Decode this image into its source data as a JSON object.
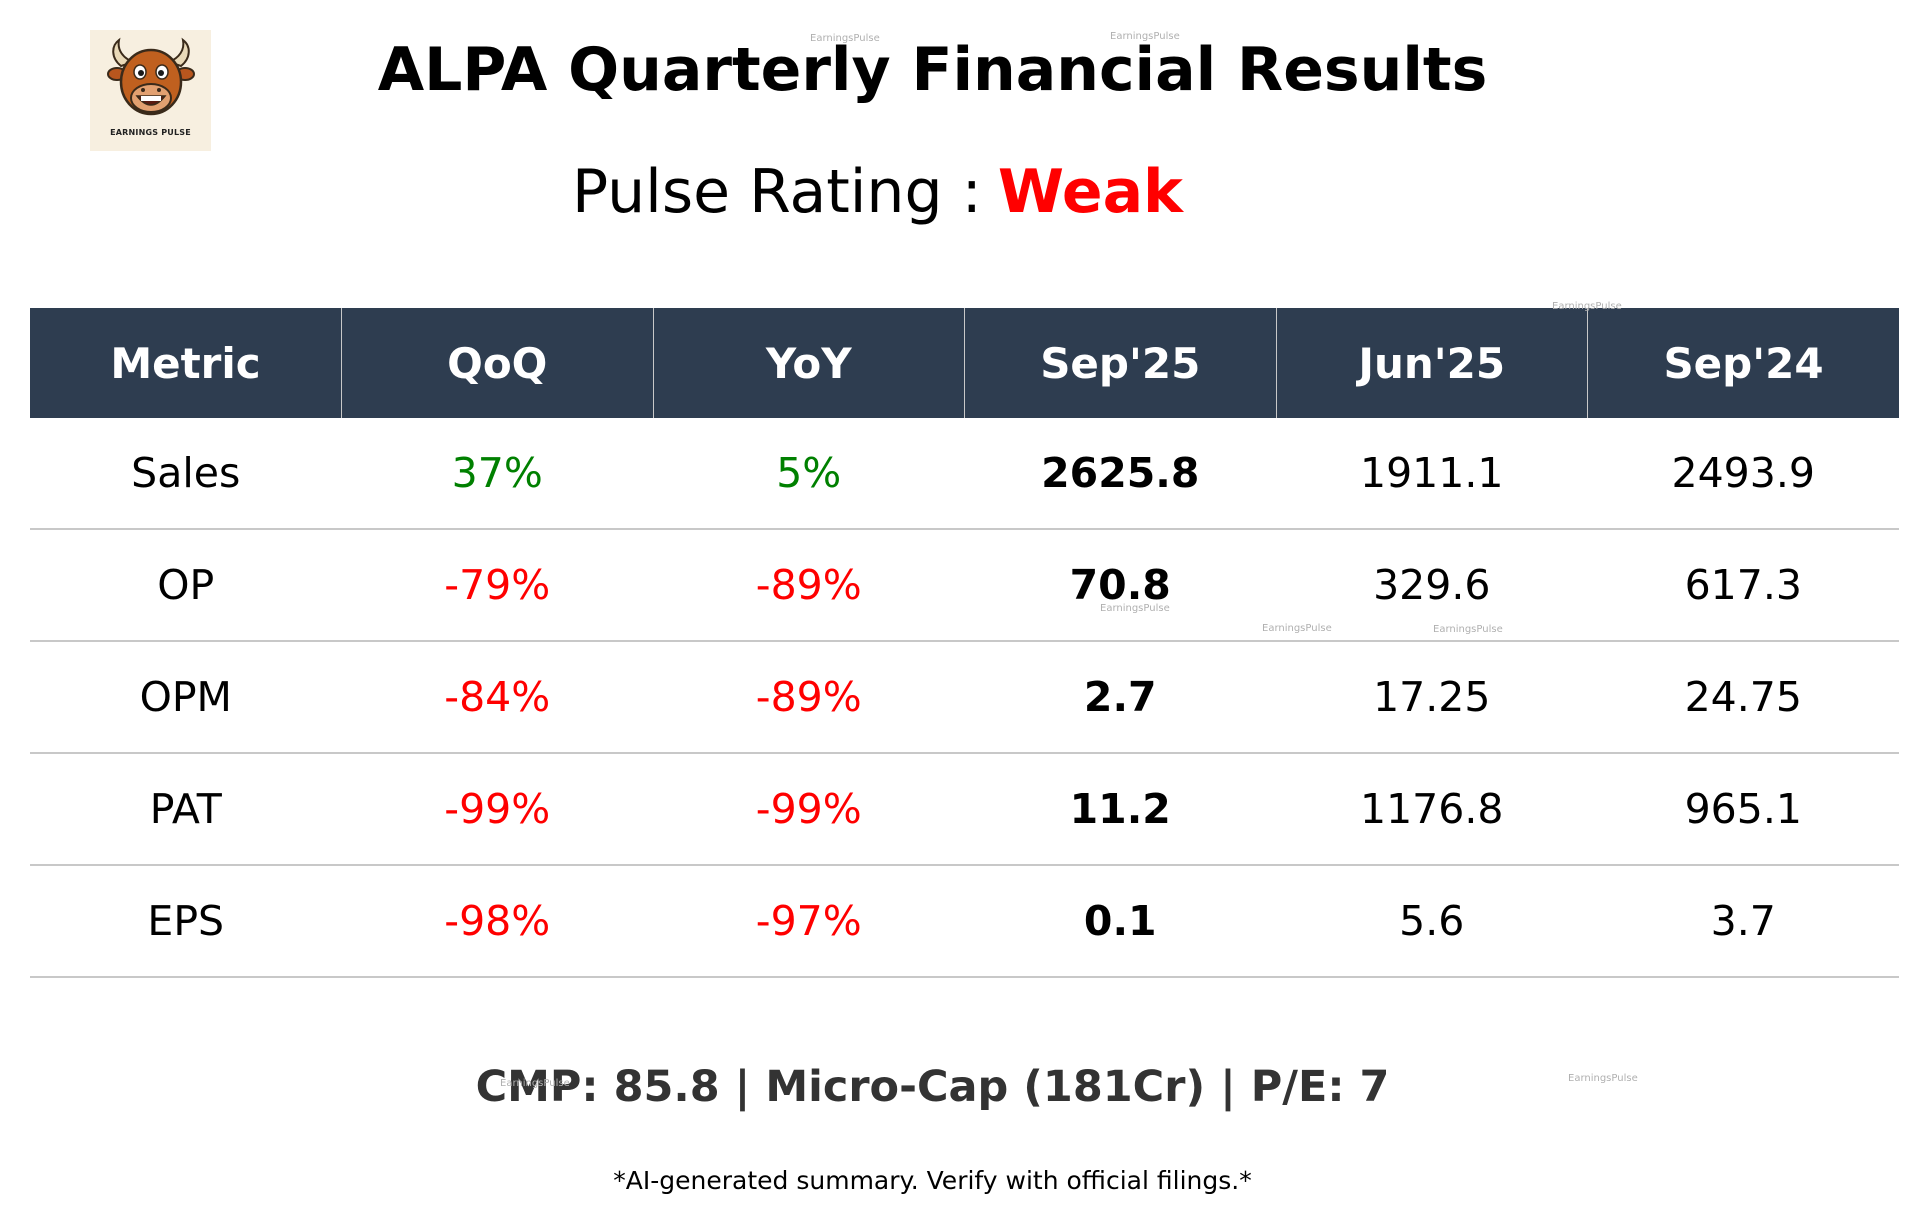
{
  "logo": {
    "text": "EARNINGS PULSE",
    "icon": "bull-mascot-icon"
  },
  "title": "ALPA Quarterly Financial Results",
  "rating": {
    "label": "Pulse Rating :",
    "value": "Weak",
    "value_color": "#ff0000"
  },
  "table": {
    "headers": [
      "Metric",
      "QoQ",
      "YoY",
      "Sep'25",
      "Jun'25",
      "Sep'24"
    ],
    "rows": [
      {
        "metric": "Sales",
        "qoq": "37%",
        "yoy": "5%",
        "sep25": "2625.8",
        "jun25": "1911.1",
        "sep24": "2493.9"
      },
      {
        "metric": "OP",
        "qoq": "-79%",
        "yoy": "-89%",
        "sep25": "70.8",
        "jun25": "329.6",
        "sep24": "617.3"
      },
      {
        "metric": "OPM",
        "qoq": "-84%",
        "yoy": "-89%",
        "sep25": "2.7",
        "jun25": "17.25",
        "sep24": "24.75"
      },
      {
        "metric": "PAT",
        "qoq": "-99%",
        "yoy": "-99%",
        "sep25": "11.2",
        "jun25": "1176.8",
        "sep24": "965.1"
      },
      {
        "metric": "EPS",
        "qoq": "-98%",
        "yoy": "-97%",
        "sep25": "0.1",
        "jun25": "5.6",
        "sep24": "3.7"
      }
    ]
  },
  "footer": "CMP: 85.8 | Micro-Cap (181Cr) | P/E: 7",
  "disclaimer": "*AI-generated summary. Verify with official filings.*",
  "watermark": "EarningsPulse",
  "colors": {
    "header_bg": "#2e3d50",
    "positive": "#008000",
    "negative": "#ff0000",
    "footer_text": "#333333"
  }
}
